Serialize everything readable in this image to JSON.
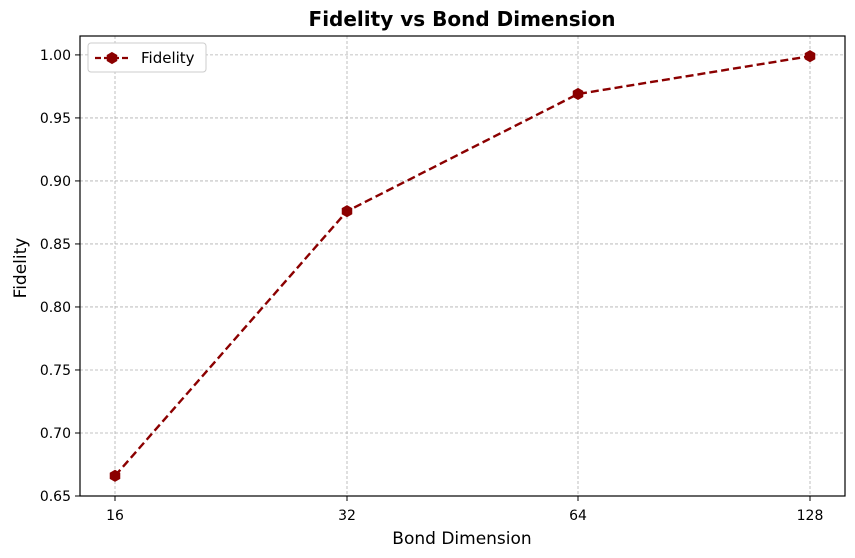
{
  "chart_data": {
    "type": "line",
    "title": "Fidelity vs Bond Dimension",
    "xlabel": "Bond Dimension",
    "ylabel": "Fidelity",
    "x_scale": "log2",
    "x": [
      16,
      32,
      64,
      128
    ],
    "x_tick_labels": [
      "16",
      "32",
      "64",
      "128"
    ],
    "y_ticks": [
      0.65,
      0.7,
      0.75,
      0.8,
      0.85,
      0.9,
      0.95,
      1.0
    ],
    "y_tick_labels": [
      "0.65",
      "0.70",
      "0.75",
      "0.80",
      "0.85",
      "0.90",
      "0.95",
      "1.00"
    ],
    "ylim": [
      0.65,
      1.015
    ],
    "grid": true,
    "legend_position": "upper-left",
    "series": [
      {
        "name": "Fidelity",
        "values": [
          0.666,
          0.876,
          0.969,
          0.999
        ],
        "color": "#8b0000",
        "line_style": "dashed",
        "marker": "hexagon"
      }
    ]
  }
}
